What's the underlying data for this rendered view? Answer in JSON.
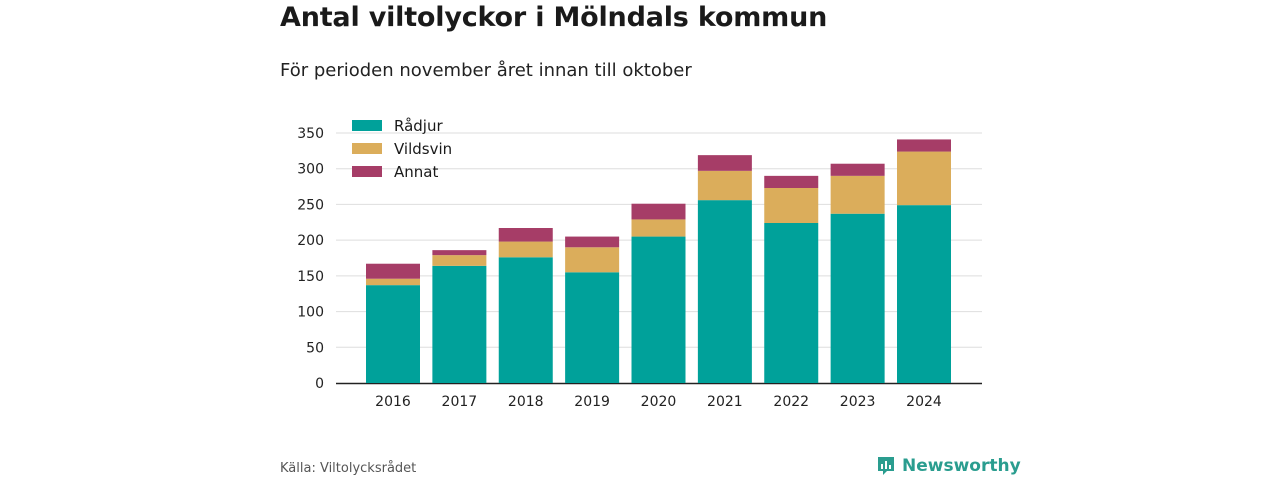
{
  "title": "Antal viltolyckor i Mölndals kommun",
  "subtitle": "För perioden november året innan till oktober",
  "source": "Källa: Viltolycksrådet",
  "brand": {
    "name": "Newsworthy",
    "icon": "newsworthy-logo-icon",
    "color": "#2a9d8f"
  },
  "chart_data": {
    "type": "bar",
    "stacked": true,
    "categories": [
      "2016",
      "2017",
      "2018",
      "2019",
      "2020",
      "2021",
      "2022",
      "2023",
      "2024"
    ],
    "series": [
      {
        "name": "Rådjur",
        "color": "#00a19a",
        "values": [
          137,
          164,
          176,
          155,
          205,
          256,
          224,
          237,
          249
        ]
      },
      {
        "name": "Vildsvin",
        "color": "#dbad5b",
        "values": [
          9,
          15,
          22,
          35,
          24,
          41,
          49,
          53,
          75
        ]
      },
      {
        "name": "Annat",
        "color": "#a63d67",
        "values": [
          21,
          7,
          19,
          15,
          22,
          22,
          17,
          17,
          17
        ]
      }
    ],
    "ylim": [
      0,
      350
    ],
    "yticks": [
      0,
      50,
      100,
      150,
      200,
      250,
      300,
      350
    ],
    "grid": true,
    "legend": "top-left"
  }
}
